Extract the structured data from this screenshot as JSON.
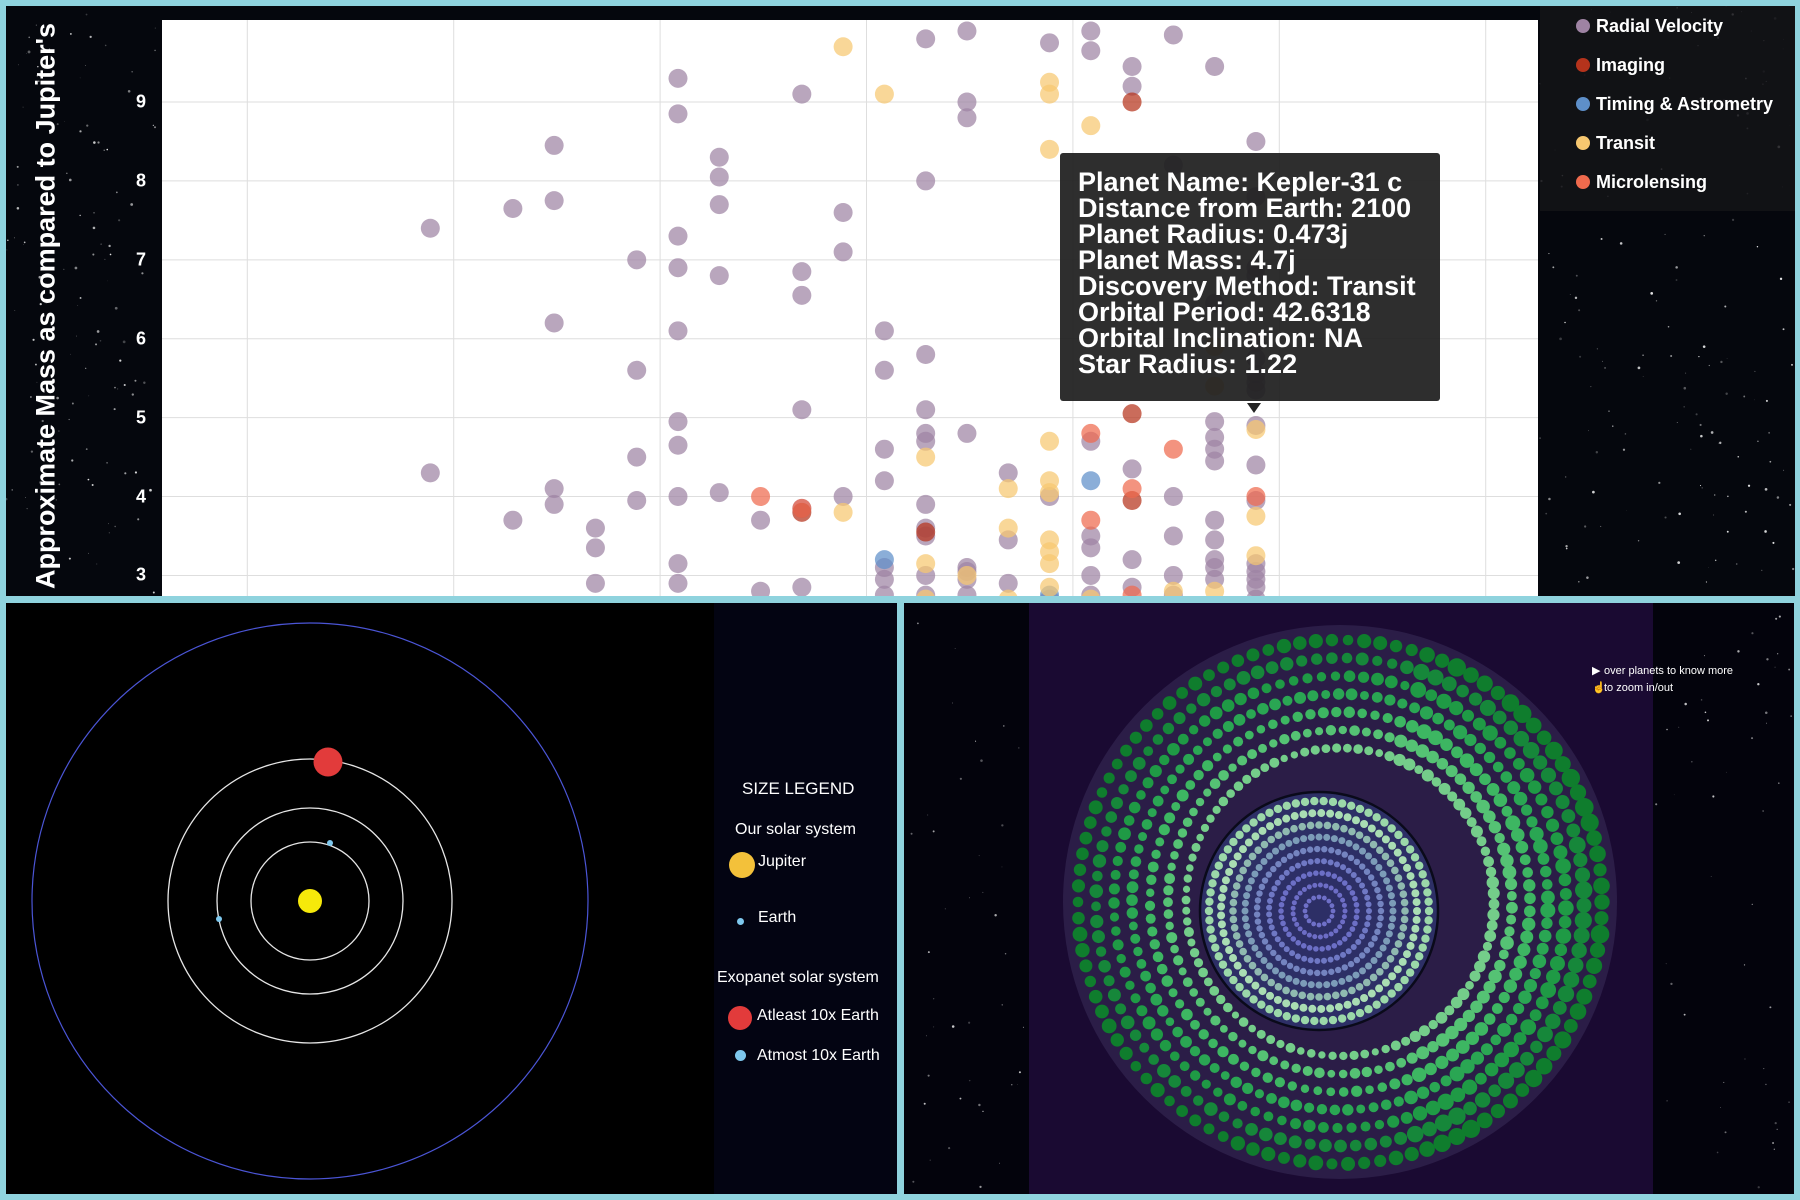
{
  "scatter_panel": {
    "y_axis_title": "Approximate Mass as compared to Jupiter's",
    "tooltip": [
      "Planet Name: Kepler-31 c",
      "Distance from Earth: 2100",
      "Planet Radius: 0.473j",
      "Planet Mass: 4.7j",
      "Discovery Method: Transit",
      "Orbital Period: 42.6318",
      "Orbital Inclination: NA",
      "Star Radius: 1.22"
    ],
    "legend": [
      {
        "label": "Radial Velocity",
        "color": "#9e83a3"
      },
      {
        "label": "Imaging",
        "color": "#b5331c"
      },
      {
        "label": "Timing & Astrometry",
        "color": "#5e8fc9"
      },
      {
        "label": "Transit",
        "color": "#f6c770"
      },
      {
        "label": "Microlensing",
        "color": "#ef6a4d"
      }
    ]
  },
  "chart_data": {
    "type": "scatter",
    "ylabel": "Approximate Mass as compared to Jupiter's",
    "yticks": [
      "3",
      "4",
      "5",
      "6",
      "7",
      "8",
      "9"
    ],
    "ylim": [
      2.6,
      9.9
    ],
    "x_range_units": [
      0,
      100
    ],
    "grid": true,
    "legend_position": "right",
    "series": [
      {
        "name": "Radial Velocity",
        "color": "#9e83a3",
        "points": [
          [
            19.5,
            7.4
          ],
          [
            19.5,
            4.3
          ],
          [
            25.5,
            7.65
          ],
          [
            25.5,
            3.7
          ],
          [
            28.5,
            8.45
          ],
          [
            28.5,
            7.75
          ],
          [
            28.5,
            6.2
          ],
          [
            28.5,
            4.1
          ],
          [
            28.5,
            3.9
          ],
          [
            31.5,
            3.6
          ],
          [
            31.5,
            3.35
          ],
          [
            31.5,
            2.9
          ],
          [
            34.5,
            7.0
          ],
          [
            34.5,
            5.6
          ],
          [
            34.5,
            4.5
          ],
          [
            34.5,
            3.95
          ],
          [
            37.5,
            9.3
          ],
          [
            37.5,
            8.85
          ],
          [
            37.5,
            7.3
          ],
          [
            37.5,
            6.9
          ],
          [
            37.5,
            6.1
          ],
          [
            37.5,
            4.95
          ],
          [
            37.5,
            4.65
          ],
          [
            37.5,
            4.0
          ],
          [
            37.5,
            3.15
          ],
          [
            37.5,
            2.9
          ],
          [
            40.5,
            8.3
          ],
          [
            40.5,
            8.05
          ],
          [
            40.5,
            7.7
          ],
          [
            40.5,
            6.8
          ],
          [
            40.5,
            4.05
          ],
          [
            43.5,
            3.7
          ],
          [
            43.5,
            2.8
          ],
          [
            46.5,
            9.1
          ],
          [
            46.5,
            6.85
          ],
          [
            46.5,
            6.55
          ],
          [
            46.5,
            5.1
          ],
          [
            46.5,
            3.85
          ],
          [
            46.5,
            2.85
          ],
          [
            49.5,
            7.6
          ],
          [
            49.5,
            7.1
          ],
          [
            49.5,
            4.0
          ],
          [
            52.5,
            6.1
          ],
          [
            52.5,
            5.6
          ],
          [
            52.5,
            4.6
          ],
          [
            52.5,
            4.2
          ],
          [
            52.5,
            3.1
          ],
          [
            52.5,
            2.95
          ],
          [
            52.5,
            2.75
          ],
          [
            55.5,
            9.8
          ],
          [
            55.5,
            8.0
          ],
          [
            55.5,
            5.8
          ],
          [
            55.5,
            5.1
          ],
          [
            55.5,
            4.8
          ],
          [
            55.5,
            4.7
          ],
          [
            55.5,
            3.9
          ],
          [
            55.5,
            3.6
          ],
          [
            55.5,
            3.5
          ],
          [
            55.5,
            3.0
          ],
          [
            55.5,
            2.75
          ],
          [
            58.5,
            9.9
          ],
          [
            58.5,
            9.0
          ],
          [
            58.5,
            8.8
          ],
          [
            58.5,
            4.8
          ],
          [
            58.5,
            3.1
          ],
          [
            58.5,
            3.05
          ],
          [
            58.5,
            2.95
          ],
          [
            58.5,
            2.75
          ],
          [
            61.5,
            4.3
          ],
          [
            61.5,
            3.45
          ],
          [
            61.5,
            2.9
          ],
          [
            64.5,
            9.75
          ],
          [
            64.5,
            4.0
          ],
          [
            64.5,
            2.7
          ],
          [
            67.5,
            9.9
          ],
          [
            67.5,
            9.65
          ],
          [
            67.5,
            4.7
          ],
          [
            67.5,
            3.5
          ],
          [
            67.5,
            3.35
          ],
          [
            67.5,
            3.0
          ],
          [
            67.5,
            2.75
          ],
          [
            70.5,
            9.45
          ],
          [
            70.5,
            9.2
          ],
          [
            70.5,
            4.35
          ],
          [
            70.5,
            3.2
          ],
          [
            70.5,
            2.85
          ],
          [
            73.5,
            9.85
          ],
          [
            73.5,
            8.2
          ],
          [
            73.5,
            4.0
          ],
          [
            73.5,
            3.5
          ],
          [
            73.5,
            3.0
          ],
          [
            73.5,
            2.75
          ],
          [
            76.5,
            9.45
          ],
          [
            76.5,
            6.45
          ],
          [
            76.5,
            4.95
          ],
          [
            76.5,
            4.75
          ],
          [
            76.5,
            4.6
          ],
          [
            76.5,
            4.45
          ],
          [
            76.5,
            3.7
          ],
          [
            76.5,
            3.45
          ],
          [
            76.5,
            3.2
          ],
          [
            76.5,
            3.1
          ],
          [
            76.5,
            2.95
          ],
          [
            79.5,
            8.5
          ],
          [
            79.5,
            7.8
          ],
          [
            79.5,
            6.9
          ],
          [
            79.5,
            6.8
          ],
          [
            79.5,
            5.95
          ],
          [
            79.5,
            5.75
          ],
          [
            79.5,
            5.55
          ],
          [
            79.5,
            5.45
          ],
          [
            79.5,
            5.35
          ],
          [
            79.5,
            4.9
          ],
          [
            79.5,
            4.4
          ],
          [
            79.5,
            3.95
          ],
          [
            79.5,
            3.15
          ],
          [
            79.5,
            3.05
          ],
          [
            79.5,
            2.95
          ],
          [
            79.5,
            2.85
          ],
          [
            79.5,
            2.7
          ]
        ]
      },
      {
        "name": "Imaging",
        "color": "#b5331c",
        "points": [
          [
            46.5,
            3.8
          ],
          [
            55.5,
            3.55
          ],
          [
            70.5,
            9.0
          ],
          [
            70.5,
            5.05
          ],
          [
            70.5,
            3.95
          ]
        ]
      },
      {
        "name": "Timing & Astrometry",
        "color": "#5e8fc9",
        "points": [
          [
            52.5,
            3.2
          ],
          [
            67.5,
            4.2
          ],
          [
            64.5,
            2.75
          ]
        ]
      },
      {
        "name": "Transit",
        "color": "#f6c770",
        "points": [
          [
            49.5,
            9.7
          ],
          [
            49.5,
            3.8
          ],
          [
            52.5,
            9.1
          ],
          [
            55.5,
            4.5
          ],
          [
            55.5,
            3.15
          ],
          [
            55.5,
            2.7
          ],
          [
            58.5,
            3.0
          ],
          [
            61.5,
            4.1
          ],
          [
            61.5,
            3.6
          ],
          [
            61.5,
            2.7
          ],
          [
            64.5,
            9.25
          ],
          [
            64.5,
            9.1
          ],
          [
            64.5,
            8.4
          ],
          [
            64.5,
            4.7
          ],
          [
            64.5,
            4.2
          ],
          [
            64.5,
            4.05
          ],
          [
            64.5,
            3.45
          ],
          [
            64.5,
            3.3
          ],
          [
            64.5,
            3.15
          ],
          [
            64.5,
            2.85
          ],
          [
            67.5,
            8.7
          ],
          [
            67.5,
            2.7
          ],
          [
            73.5,
            2.8
          ],
          [
            76.5,
            5.9
          ],
          [
            76.5,
            5.4
          ],
          [
            76.5,
            2.8
          ],
          [
            79.5,
            4.85
          ],
          [
            79.5,
            3.75
          ],
          [
            79.5,
            3.25
          ]
        ]
      },
      {
        "name": "Microlensing",
        "color": "#ef6a4d",
        "points": [
          [
            43.5,
            4.0
          ],
          [
            46.5,
            3.85
          ],
          [
            67.5,
            4.8
          ],
          [
            67.5,
            3.7
          ],
          [
            70.5,
            4.1
          ],
          [
            70.5,
            2.75
          ],
          [
            73.5,
            4.6
          ],
          [
            79.5,
            4.0
          ]
        ]
      }
    ]
  },
  "orbit_panel": {
    "size_legend_title": "SIZE LEGEND",
    "our_system_label": "Our solar system",
    "jupiter_label": "Jupiter",
    "earth_label": "Earth",
    "exo_system_label": "Exopanet solar system",
    "atleast_label": "Atleast 10x Earth",
    "atmost_label": "Atmost 10x Earth"
  },
  "pack_panel": {
    "hint_hover": "over planets to know more",
    "hint_zoom": "to zoom in/out"
  }
}
